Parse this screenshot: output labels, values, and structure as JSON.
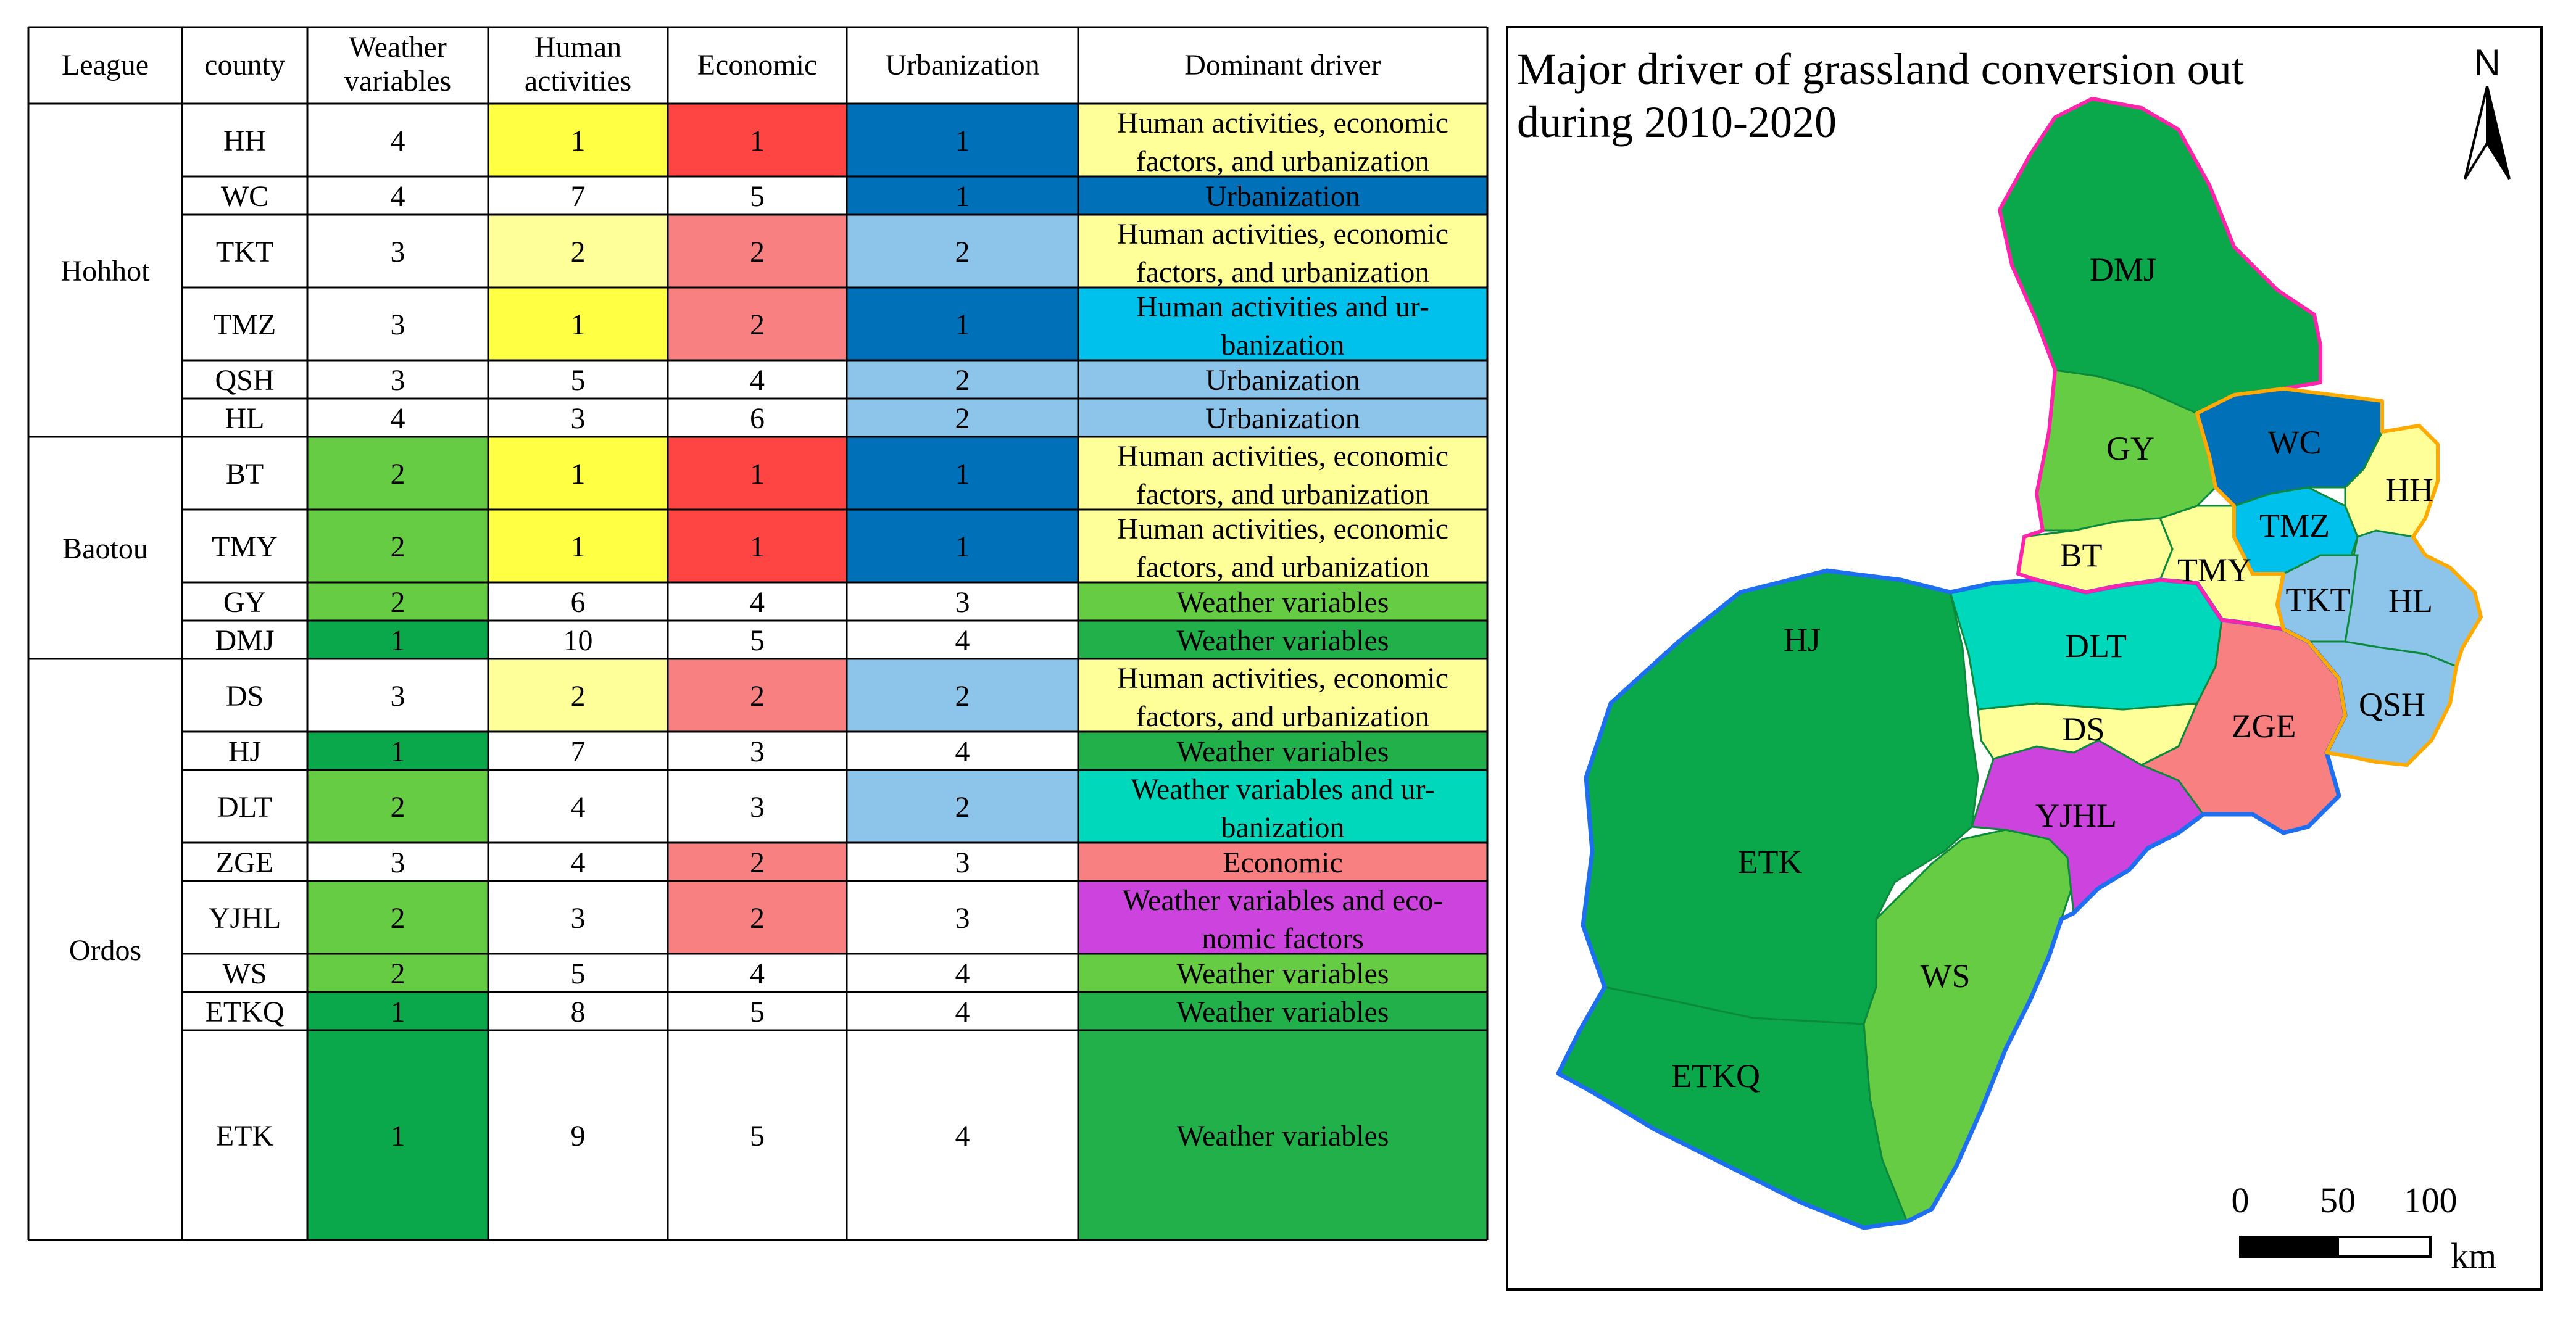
{
  "table": {
    "headers": [
      {
        "line1": "League",
        "line2": ""
      },
      {
        "line1": "county",
        "line2": ""
      },
      {
        "line1": "Weather",
        "line2": "variables"
      },
      {
        "line1": "Human",
        "line2": "activities"
      },
      {
        "line1": "Economic",
        "line2": ""
      },
      {
        "line1": "Urbanization",
        "line2": ""
      },
      {
        "line1": "Dominant driver",
        "line2": ""
      }
    ],
    "leagues": [
      {
        "name": "Hohhot",
        "first_row": 0,
        "row_count": 6
      },
      {
        "name": "Baotou",
        "first_row": 6,
        "row_count": 4
      },
      {
        "name": "Ordos",
        "first_row": 10,
        "row_count": 8
      }
    ],
    "rows": [
      {
        "county": "HH",
        "weather": "4",
        "human": "1",
        "economic": "1",
        "urban": "1",
        "driver": [
          "Human activities, economic",
          "factors, and urbanization"
        ]
      },
      {
        "county": "WC",
        "weather": "4",
        "human": "7",
        "economic": "5",
        "urban": "1",
        "driver": [
          "Urbanization"
        ]
      },
      {
        "county": "TKT",
        "weather": "3",
        "human": "2",
        "economic": "2",
        "urban": "2",
        "driver": [
          "Human activities, economic",
          "factors, and urbanization"
        ]
      },
      {
        "county": "TMZ",
        "weather": "3",
        "human": "1",
        "economic": "2",
        "urban": "1",
        "driver": [
          "Human activities and ur-",
          "banization"
        ]
      },
      {
        "county": "QSH",
        "weather": "3",
        "human": "5",
        "economic": "4",
        "urban": "2",
        "driver": [
          "Urbanization"
        ]
      },
      {
        "county": "HL",
        "weather": "4",
        "human": "3",
        "economic": "6",
        "urban": "2",
        "driver": [
          "Urbanization"
        ]
      },
      {
        "county": "BT",
        "weather": "2",
        "human": "1",
        "economic": "1",
        "urban": "1",
        "driver": [
          "Human activities, economic",
          "factors, and urbanization"
        ]
      },
      {
        "county": "TMY",
        "weather": "2",
        "human": "1",
        "economic": "1",
        "urban": "1",
        "driver": [
          "Human activities, economic",
          "factors, and urbanization"
        ]
      },
      {
        "county": "GY",
        "weather": "2",
        "human": "6",
        "economic": "4",
        "urban": "3",
        "driver": [
          "Weather variables"
        ]
      },
      {
        "county": "DMJ",
        "weather": "1",
        "human": "10",
        "economic": "5",
        "urban": "4",
        "driver": [
          "Weather variables"
        ]
      },
      {
        "county": "DS",
        "weather": "3",
        "human": "2",
        "economic": "2",
        "urban": "2",
        "driver": [
          "Human activities, economic",
          "factors, and urbanization"
        ]
      },
      {
        "county": "HJ",
        "weather": "1",
        "human": "7",
        "economic": "3",
        "urban": "4",
        "driver": [
          "Weather variables"
        ]
      },
      {
        "county": "DLT",
        "weather": "2",
        "human": "4",
        "economic": "3",
        "urban": "2",
        "driver": [
          "Weather variables and ur-",
          "banization"
        ]
      },
      {
        "county": "ZGE",
        "weather": "3",
        "human": "4",
        "economic": "2",
        "urban": "3",
        "driver": [
          "Economic"
        ]
      },
      {
        "county": "YJHL",
        "weather": "2",
        "human": "3",
        "economic": "2",
        "urban": "3",
        "driver": [
          "Weather variables and eco-",
          "nomic factors"
        ]
      },
      {
        "county": "WS",
        "weather": "2",
        "human": "5",
        "economic": "4",
        "urban": "4",
        "driver": [
          "Weather variables"
        ]
      },
      {
        "county": "ETKQ",
        "weather": "1",
        "human": "8",
        "economic": "5",
        "urban": "4",
        "driver": [
          "Weather variables"
        ]
      },
      {
        "county": "ETK",
        "weather": "1",
        "human": "9",
        "economic": "5",
        "urban": "4",
        "driver": [
          "Weather variables"
        ]
      }
    ],
    "colors": {
      "weather_rank1": "#0aa84a",
      "weather_rank2": "#66cc44",
      "human_rank1": "#ffff44",
      "human_rank2": "#ffff99",
      "economic_rank1": "#ff4444",
      "economic_rank2": "#f88080",
      "urban_rank1": "#0070b8",
      "urban_rank2": "#8cc4ea",
      "driver_human_econ_urban": "#ffff99",
      "driver_urbanization_strong": "#0070b8",
      "driver_urbanization": "#8cc4ea",
      "driver_human_urban": "#00c0ec",
      "driver_weather": "#22b04a",
      "driver_weather_alt": "#66cc44",
      "driver_weather_urban": "#00d8bc",
      "driver_economic": "#f88080",
      "driver_weather_econ": "#cc44dd"
    }
  },
  "map": {
    "title_line1": "Major driver of grassland conversion out",
    "title_line2": "during 2010-2020",
    "north_label": "N",
    "scale_ticks": [
      "0",
      "50",
      "100"
    ],
    "scale_unit": "km",
    "region_labels": [
      "DMJ",
      "GY",
      "WC",
      "HH",
      "TMZ",
      "BT",
      "TMY",
      "TKT",
      "HL",
      "QSH",
      "HJ",
      "DLT",
      "DS",
      "ZGE",
      "YJHL",
      "ETK",
      "WS",
      "ETKQ"
    ],
    "colors": {
      "dark_green": "#0aa84a",
      "light_green": "#66cc44",
      "dark_blue": "#0070b8",
      "light_blue": "#8cc4ea",
      "cyan": "#00c0ec",
      "teal": "#00d8bc",
      "pale_yellow": "#ffff99",
      "salmon": "#f88080",
      "purple": "#cc44dd",
      "baotou_border": "#ff22aa",
      "hohhot_border": "#ffaa00",
      "ordos_border": "#1e6ff0"
    }
  }
}
